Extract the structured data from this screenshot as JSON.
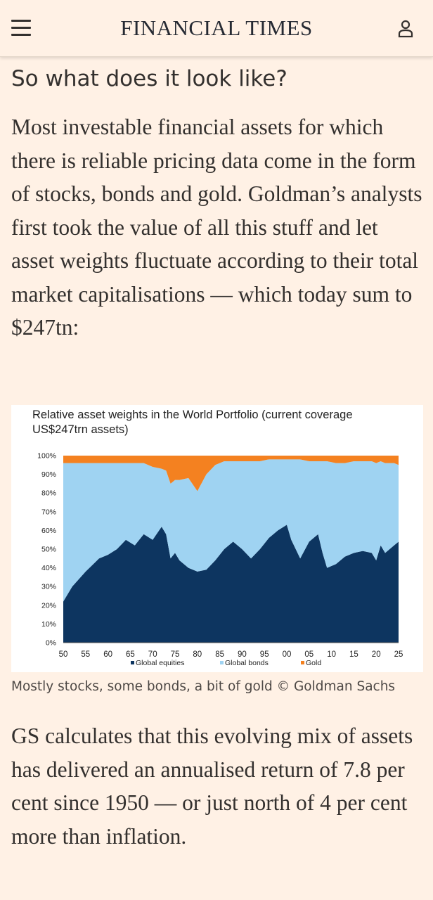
{
  "header": {
    "menu_icon": "hamburger-menu-icon",
    "masthead": "FINANCIAL TIMES",
    "user_icon": "user-account-icon"
  },
  "article": {
    "subheading": "So what does it look like?",
    "paragraphs": [
      "Most investable financial assets for which there is reliable pricing data come in the form of stocks, bonds and gold. Goldman’s analysts first took the value of all this stuff and let asset weights fluctuate according to their total market capitalisations — which today sum to $247tn:",
      "GS calculates that this evolving mix of assets has delivered an annualised return of 7.8 per cent since 1950 — or just north of 4 per cent more than inflation."
    ],
    "caption": "Mostly stocks, some bonds, a bit of gold © Goldman Sachs"
  },
  "chart_data": {
    "type": "area",
    "stacked": true,
    "title": "Relative asset weights in the World Portfolio (current coverage US$247trn assets)",
    "ylim": [
      0,
      100
    ],
    "y_ticks": [
      "0%",
      "10%",
      "20%",
      "30%",
      "40%",
      "50%",
      "60%",
      "70%",
      "80%",
      "90%",
      "100%"
    ],
    "xlim": [
      1950,
      2025
    ],
    "x_ticks": [
      {
        "year": 1950,
        "label": "50"
      },
      {
        "year": 1955,
        "label": "55"
      },
      {
        "year": 1960,
        "label": "60"
      },
      {
        "year": 1965,
        "label": "65"
      },
      {
        "year": 1970,
        "label": "70"
      },
      {
        "year": 1975,
        "label": "75"
      },
      {
        "year": 1980,
        "label": "80"
      },
      {
        "year": 1985,
        "label": "85"
      },
      {
        "year": 1990,
        "label": "90"
      },
      {
        "year": 1995,
        "label": "95"
      },
      {
        "year": 2000,
        "label": "00"
      },
      {
        "year": 2005,
        "label": "05"
      },
      {
        "year": 2010,
        "label": "10"
      },
      {
        "year": 2015,
        "label": "15"
      },
      {
        "year": 2020,
        "label": "20"
      },
      {
        "year": 2025,
        "label": "25"
      }
    ],
    "legend_position": "bottom",
    "x": [
      1950,
      1952,
      1955,
      1958,
      1960,
      1962,
      1964,
      1966,
      1968,
      1970,
      1972,
      1973,
      1974,
      1975,
      1976,
      1978,
      1980,
      1982,
      1984,
      1986,
      1988,
      1990,
      1992,
      1994,
      1996,
      1998,
      2000,
      2001,
      2003,
      2005,
      2007,
      2008,
      2009,
      2011,
      2013,
      2015,
      2017,
      2019,
      2020,
      2021,
      2022,
      2024,
      2025
    ],
    "series": [
      {
        "name": "Global equities",
        "color": "#0d3560",
        "values": [
          22,
          30,
          38,
          45,
          47,
          50,
          55,
          52,
          58,
          55,
          62,
          58,
          45,
          48,
          44,
          40,
          38,
          39,
          44,
          50,
          54,
          50,
          45,
          50,
          56,
          60,
          63,
          55,
          45,
          54,
          58,
          48,
          40,
          42,
          46,
          48,
          49,
          48,
          44,
          52,
          48,
          52,
          54
        ]
      },
      {
        "name": "Global bonds",
        "color": "#9fd3f2",
        "values": [
          74,
          66,
          58,
          51,
          49,
          46,
          41,
          44,
          38,
          39,
          31,
          34,
          40,
          39,
          43,
          48,
          43,
          51,
          51,
          47,
          43,
          47,
          52,
          47,
          42,
          38,
          35,
          43,
          53,
          43,
          39,
          49,
          57,
          54,
          50,
          49,
          48,
          49,
          52,
          45,
          48,
          44,
          41
        ]
      },
      {
        "name": "Gold",
        "color": "#f48120",
        "values": [
          4,
          4,
          4,
          4,
          4,
          4,
          4,
          4,
          4,
          6,
          7,
          8,
          15,
          13,
          13,
          12,
          19,
          10,
          5,
          3,
          3,
          3,
          3,
          3,
          2,
          2,
          2,
          2,
          2,
          3,
          3,
          3,
          3,
          4,
          4,
          3,
          3,
          3,
          4,
          3,
          4,
          4,
          5
        ]
      }
    ]
  }
}
